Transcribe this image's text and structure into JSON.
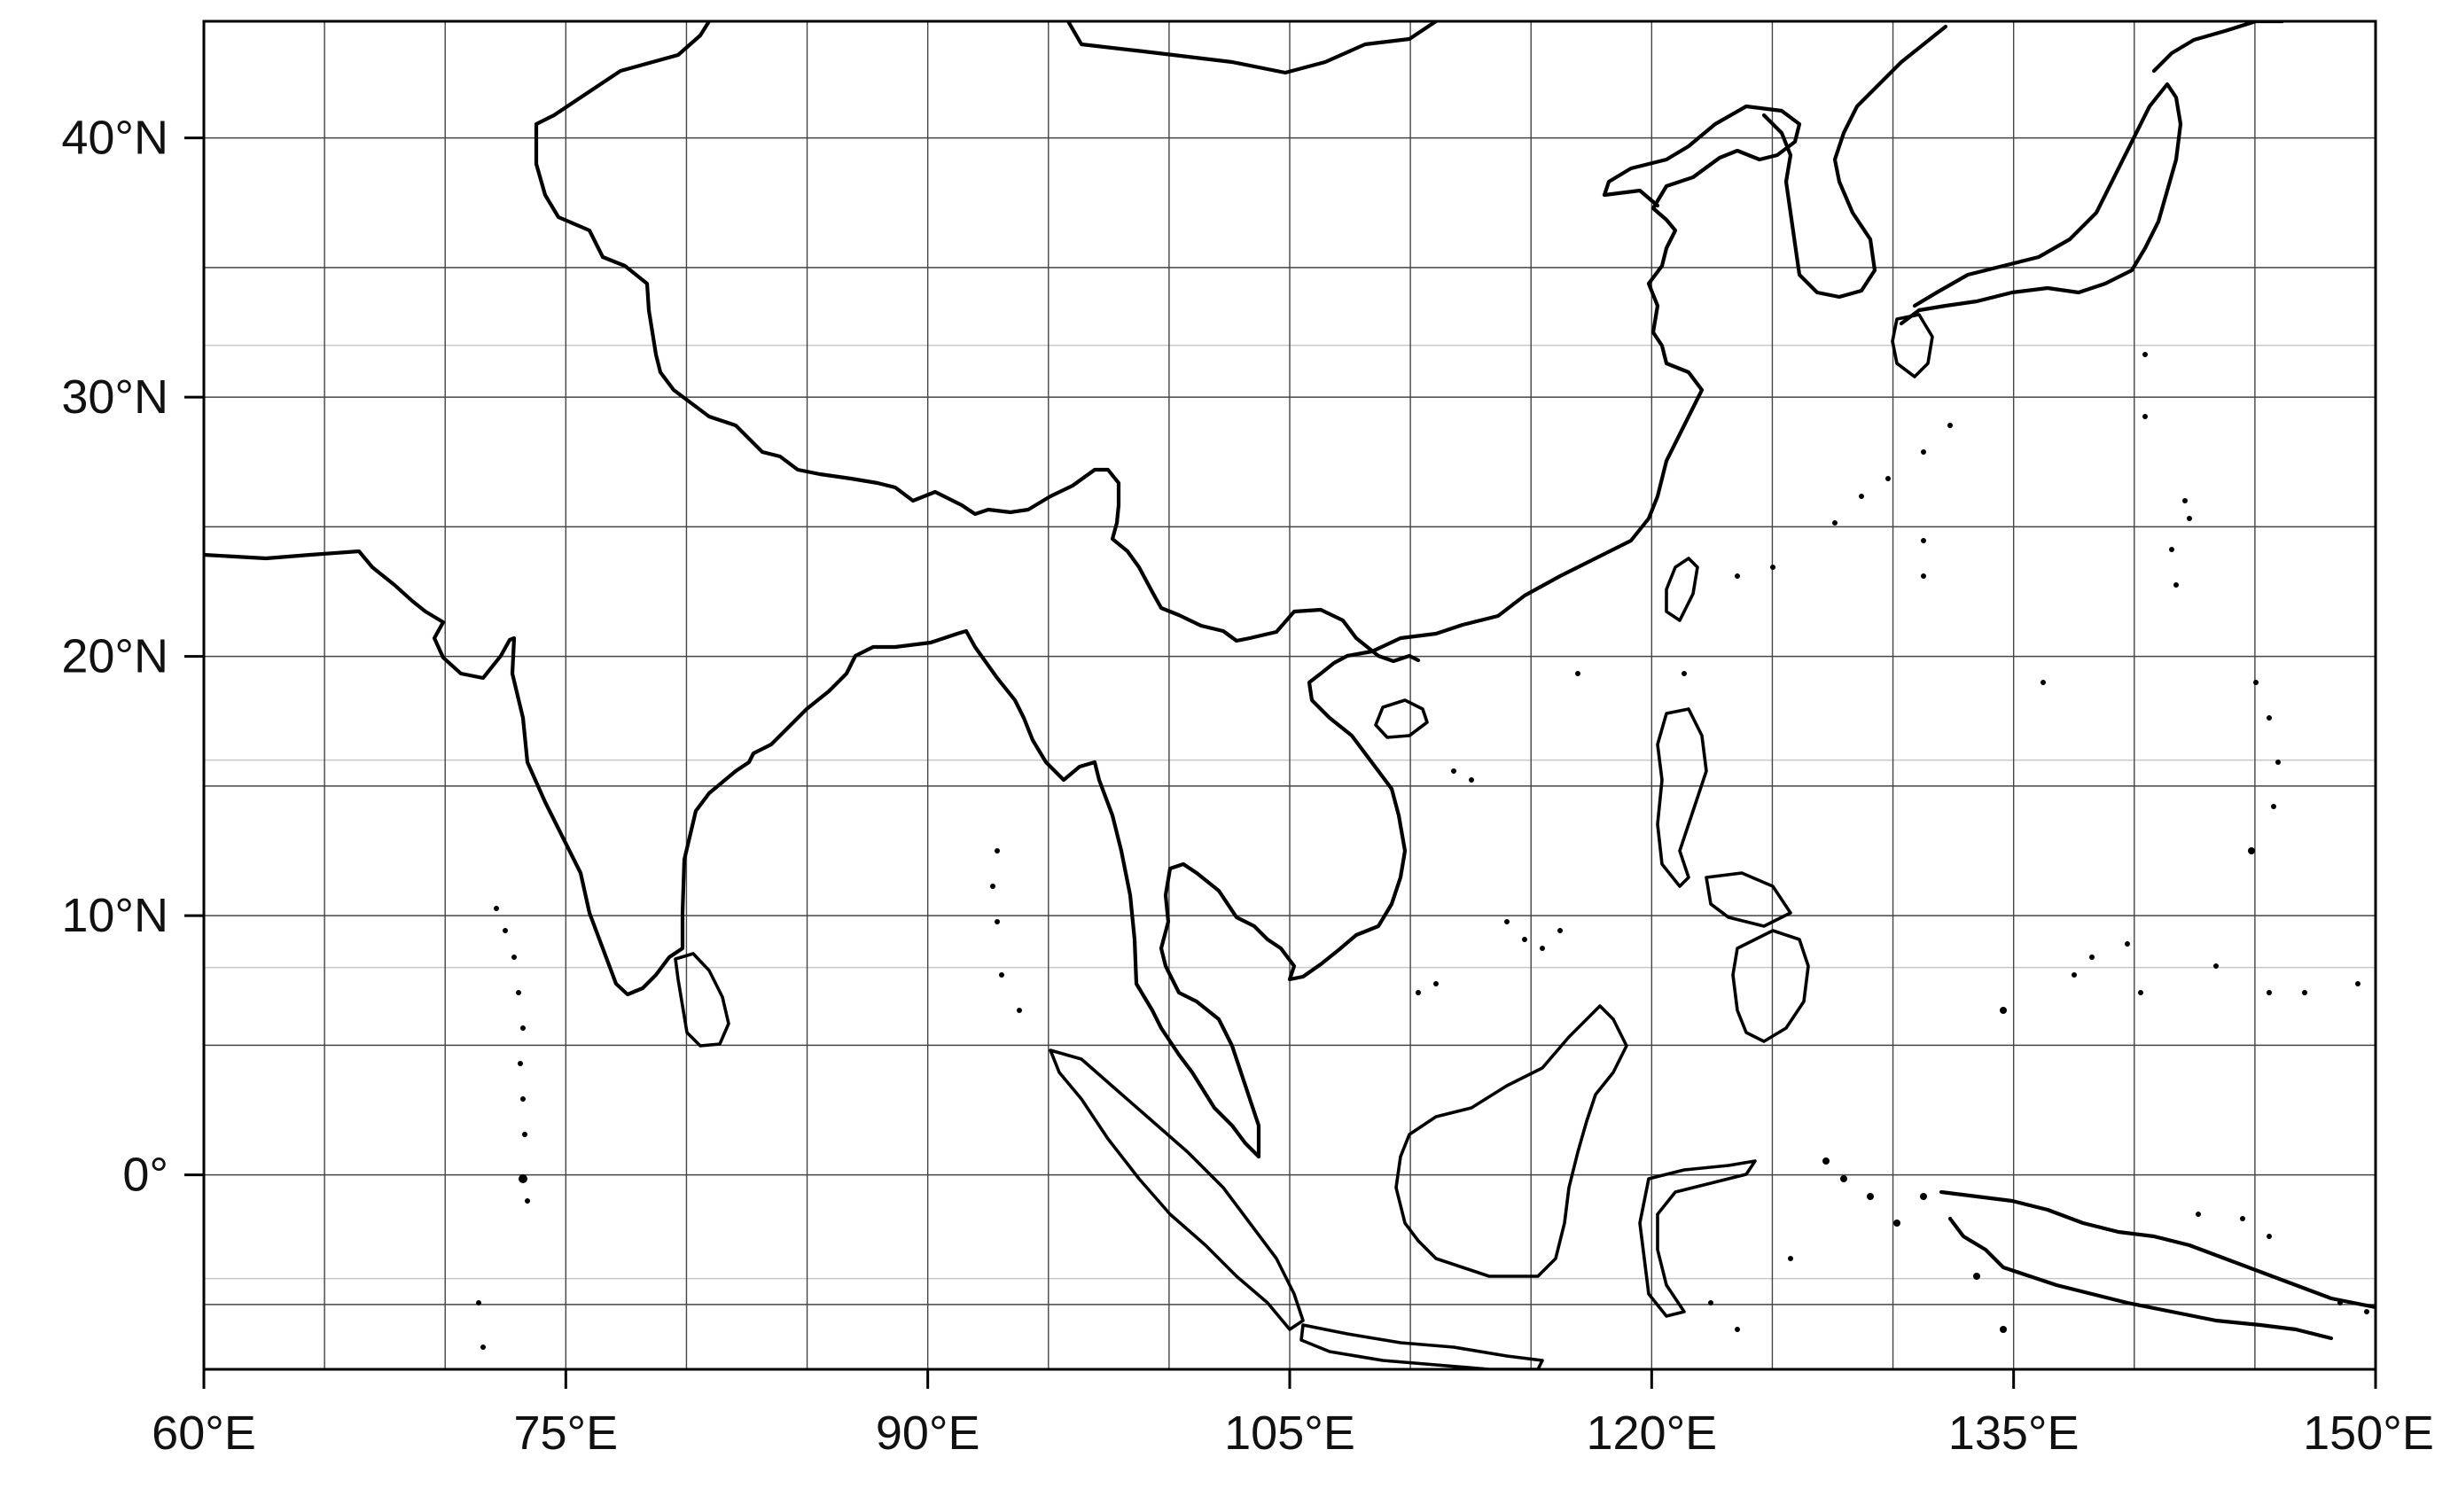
{
  "map": {
    "projection": "cylindrical-equidistant",
    "lon_range": [
      60,
      150
    ],
    "lat_range": [
      -7.5,
      44.5
    ],
    "major_grid": {
      "lon": [
        60,
        75,
        90,
        105,
        120,
        135,
        150
      ],
      "lat": [
        0,
        10,
        20,
        30,
        40
      ]
    },
    "extra_grid_lon": [
      65,
      70,
      80,
      85,
      95,
      100,
      110,
      115,
      125,
      130,
      140,
      145
    ],
    "extra_grid_lat": [
      -5,
      5,
      15,
      25,
      35
    ],
    "minor_grid_lat": [
      -4,
      8,
      16,
      32
    ],
    "colors": {
      "coastline": "#000000",
      "grid_major": "#444444",
      "grid_minor": "#c8c8c8",
      "frame": "#000000"
    }
  },
  "axes": {
    "x_ticks": [
      {
        "lon": 60,
        "label": "60°E"
      },
      {
        "lon": 75,
        "label": "75°E"
      },
      {
        "lon": 90,
        "label": "90°E"
      },
      {
        "lon": 105,
        "label": "105°E"
      },
      {
        "lon": 120,
        "label": "120°E"
      },
      {
        "lon": 135,
        "label": "135°E"
      },
      {
        "lon": 150,
        "label": "150°E"
      }
    ],
    "y_ticks": [
      {
        "lat": 0,
        "label": "0°"
      },
      {
        "lat": 10,
        "label": "10°N"
      },
      {
        "lat": 20,
        "label": "20°N"
      },
      {
        "lat": 30,
        "label": "30°N"
      },
      {
        "lat": 40,
        "label": "40°N"
      }
    ]
  }
}
